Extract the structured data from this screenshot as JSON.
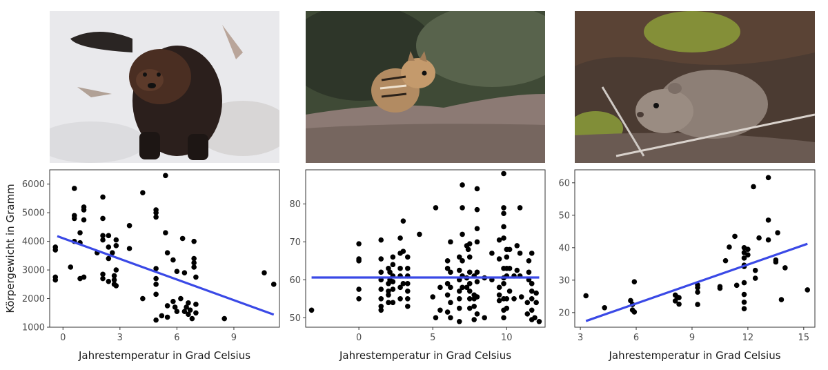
{
  "chart_data": [
    {
      "type": "scatter",
      "xlabel": "Jahrestemperatur in Grad Celsius",
      "ylabel": "Körpergewicht in Gramm",
      "xlim": [
        -0.7,
        11.4
      ],
      "ylim": [
        1000,
        6500
      ],
      "xticks": [
        0,
        3,
        6,
        9
      ],
      "yticks": [
        1000,
        2000,
        3000,
        4000,
        5000,
        6000
      ],
      "points": [
        [
          -0.4,
          3800
        ],
        [
          -0.4,
          3700
        ],
        [
          -0.4,
          2750
        ],
        [
          -0.4,
          2650
        ],
        [
          0.4,
          3100
        ],
        [
          0.6,
          5850
        ],
        [
          0.6,
          4900
        ],
        [
          0.6,
          4800
        ],
        [
          0.6,
          4000
        ],
        [
          0.9,
          4300
        ],
        [
          0.9,
          3950
        ],
        [
          0.9,
          2700
        ],
        [
          1.1,
          5200
        ],
        [
          1.1,
          5100
        ],
        [
          1.1,
          4750
        ],
        [
          1.1,
          2750
        ],
        [
          1.8,
          3600
        ],
        [
          2.1,
          5550
        ],
        [
          2.1,
          4800
        ],
        [
          2.1,
          4200
        ],
        [
          2.1,
          4050
        ],
        [
          2.1,
          2850
        ],
        [
          2.1,
          2700
        ],
        [
          2.4,
          4200
        ],
        [
          2.4,
          3800
        ],
        [
          2.4,
          3400
        ],
        [
          2.4,
          2600
        ],
        [
          2.6,
          3600
        ],
        [
          2.7,
          2800
        ],
        [
          2.7,
          2650
        ],
        [
          2.7,
          2500
        ],
        [
          2.8,
          4050
        ],
        [
          2.8,
          3850
        ],
        [
          2.8,
          3000
        ],
        [
          2.8,
          2450
        ],
        [
          3.5,
          4550
        ],
        [
          3.5,
          3750
        ],
        [
          4.2,
          5700
        ],
        [
          4.2,
          2000
        ],
        [
          4.9,
          5100
        ],
        [
          4.9,
          5000
        ],
        [
          4.9,
          4850
        ],
        [
          4.9,
          3050
        ],
        [
          4.9,
          2700
        ],
        [
          4.9,
          2500
        ],
        [
          4.9,
          2150
        ],
        [
          4.9,
          1250
        ],
        [
          5.2,
          1400
        ],
        [
          5.4,
          6300
        ],
        [
          5.4,
          4300
        ],
        [
          5.5,
          3600
        ],
        [
          5.5,
          1750
        ],
        [
          5.5,
          1350
        ],
        [
          5.8,
          3350
        ],
        [
          5.8,
          1900
        ],
        [
          5.9,
          1700
        ],
        [
          6,
          2950
        ],
        [
          6,
          1550
        ],
        [
          6.2,
          2000
        ],
        [
          6.3,
          4100
        ],
        [
          6.4,
          2900
        ],
        [
          6.4,
          1550
        ],
        [
          6.5,
          1700
        ],
        [
          6.6,
          1850
        ],
        [
          6.6,
          1450
        ],
        [
          6.7,
          1600
        ],
        [
          6.8,
          1300
        ],
        [
          6.9,
          4000
        ],
        [
          6.9,
          3400
        ],
        [
          6.9,
          3250
        ],
        [
          6.9,
          3100
        ],
        [
          7,
          2750
        ],
        [
          7,
          1800
        ],
        [
          7,
          1500
        ],
        [
          8.5,
          1300
        ],
        [
          10.6,
          2900
        ],
        [
          11.1,
          2500
        ]
      ],
      "fit": {
        "from": [
          -0.3,
          4180
        ],
        "to": [
          11.1,
          1440
        ]
      }
    },
    {
      "type": "scatter",
      "xlabel": "Jahrestemperatur in Grad Celsius",
      "ylabel": "",
      "xlim": [
        -3.6,
        12.6
      ],
      "ylim": [
        47.5,
        89
      ],
      "xticks": [
        0,
        5,
        10
      ],
      "yticks": [
        50,
        60,
        70,
        80
      ],
      "points": [
        [
          -3.2,
          52
        ],
        [
          0,
          69.5
        ],
        [
          0,
          65.5
        ],
        [
          0,
          65
        ],
        [
          0,
          57.5
        ],
        [
          0,
          55
        ],
        [
          1.5,
          70.5
        ],
        [
          1.5,
          65.5
        ],
        [
          1.5,
          62
        ],
        [
          1.5,
          60
        ],
        [
          1.5,
          57.5
        ],
        [
          1.5,
          55
        ],
        [
          1.5,
          53
        ],
        [
          1.5,
          52
        ],
        [
          2,
          63
        ],
        [
          2,
          59
        ],
        [
          2,
          57
        ],
        [
          2,
          56
        ],
        [
          2,
          54
        ],
        [
          2.1,
          62
        ],
        [
          2.1,
          60
        ],
        [
          2.3,
          66
        ],
        [
          2.3,
          64
        ],
        [
          2.3,
          61
        ],
        [
          2.3,
          59.5
        ],
        [
          2.3,
          57.5
        ],
        [
          2.3,
          54
        ],
        [
          2.8,
          71
        ],
        [
          2.8,
          67
        ],
        [
          2.8,
          63
        ],
        [
          2.8,
          61
        ],
        [
          2.8,
          58
        ],
        [
          2.8,
          55
        ],
        [
          3,
          75.5
        ],
        [
          3,
          67.5
        ],
        [
          3,
          59
        ],
        [
          3.3,
          66
        ],
        [
          3.3,
          63
        ],
        [
          3.3,
          61
        ],
        [
          3.3,
          59
        ],
        [
          3.3,
          57
        ],
        [
          3.3,
          55
        ],
        [
          3.3,
          53
        ],
        [
          4.1,
          72
        ],
        [
          5,
          55.5
        ],
        [
          5.2,
          79
        ],
        [
          5.2,
          50
        ],
        [
          5.5,
          58
        ],
        [
          5.5,
          52
        ],
        [
          6,
          65
        ],
        [
          6,
          63
        ],
        [
          6,
          59
        ],
        [
          6,
          56
        ],
        [
          6,
          51.5
        ],
        [
          6.2,
          70
        ],
        [
          6.2,
          62
        ],
        [
          6.2,
          58
        ],
        [
          6.2,
          54
        ],
        [
          6.2,
          50
        ],
        [
          6.8,
          66
        ],
        [
          6.8,
          62.5
        ],
        [
          6.8,
          60
        ],
        [
          6.8,
          57
        ],
        [
          6.8,
          55
        ],
        [
          6.8,
          52.5
        ],
        [
          6.8,
          49
        ],
        [
          7,
          85
        ],
        [
          7,
          79
        ],
        [
          7,
          72
        ],
        [
          7,
          65
        ],
        [
          7,
          61
        ],
        [
          7,
          58
        ],
        [
          7.3,
          69
        ],
        [
          7.3,
          60.5
        ],
        [
          7.3,
          58
        ],
        [
          7.4,
          68
        ],
        [
          7.5,
          69.5
        ],
        [
          7.5,
          66
        ],
        [
          7.5,
          62
        ],
        [
          7.5,
          59
        ],
        [
          7.5,
          57
        ],
        [
          7.5,
          55
        ],
        [
          7.5,
          52.5
        ],
        [
          7.8,
          61
        ],
        [
          7.8,
          56
        ],
        [
          7.8,
          55
        ],
        [
          7.8,
          53
        ],
        [
          7.8,
          49.5
        ],
        [
          8,
          84
        ],
        [
          8,
          78.5
        ],
        [
          8,
          73.5
        ],
        [
          8,
          70
        ],
        [
          8,
          62
        ],
        [
          8,
          59.5
        ],
        [
          8,
          55.5
        ],
        [
          8,
          51
        ],
        [
          8.5,
          60.5
        ],
        [
          8.5,
          50
        ],
        [
          9,
          67
        ],
        [
          9,
          60
        ],
        [
          9.5,
          70.5
        ],
        [
          9.5,
          65.5
        ],
        [
          9.5,
          58
        ],
        [
          9.5,
          56
        ],
        [
          9.5,
          54.5
        ],
        [
          9.8,
          88
        ],
        [
          9.8,
          79
        ],
        [
          9.8,
          77.5
        ],
        [
          9.8,
          74
        ],
        [
          9.8,
          71
        ],
        [
          9.8,
          63
        ],
        [
          9.8,
          60.5
        ],
        [
          9.8,
          59
        ],
        [
          9.8,
          55
        ],
        [
          9.8,
          52
        ],
        [
          9.8,
          50
        ],
        [
          10,
          68
        ],
        [
          10,
          66
        ],
        [
          10,
          63
        ],
        [
          10,
          61
        ],
        [
          10,
          55
        ],
        [
          10,
          52.5
        ],
        [
          10.2,
          68
        ],
        [
          10.2,
          63
        ],
        [
          10.2,
          57
        ],
        [
          10.5,
          55
        ],
        [
          10.5,
          61
        ],
        [
          10.7,
          69
        ],
        [
          10.7,
          62.5
        ],
        [
          10.9,
          79
        ],
        [
          10.9,
          67
        ],
        [
          10.9,
          61
        ],
        [
          11,
          55.5
        ],
        [
          11.4,
          54
        ],
        [
          11.4,
          51
        ],
        [
          11.5,
          65
        ],
        [
          11.5,
          62
        ],
        [
          11.5,
          60
        ],
        [
          11.7,
          67
        ],
        [
          11.7,
          59
        ],
        [
          11.7,
          57
        ],
        [
          11.7,
          55
        ],
        [
          11.7,
          52
        ],
        [
          11.7,
          49.5
        ],
        [
          11.9,
          50
        ],
        [
          12,
          56.5
        ],
        [
          12,
          54
        ],
        [
          12.2,
          49
        ]
      ],
      "fit": {
        "from": [
          -3.2,
          60.6
        ],
        "to": [
          12.2,
          60.6
        ]
      }
    },
    {
      "type": "scatter",
      "xlabel": "Jahrestemperatur in Grad Celsius",
      "ylabel": "",
      "xlim": [
        2.7,
        15.6
      ],
      "ylim": [
        15.5,
        64
      ],
      "xticks": [
        3,
        6,
        9,
        12,
        15
      ],
      "yticks": [
        20,
        30,
        40,
        50,
        60
      ],
      "points": [
        [
          3.3,
          25.2
        ],
        [
          4.3,
          21.5
        ],
        [
          5.7,
          23.7
        ],
        [
          5.8,
          22.5
        ],
        [
          5.8,
          20.8
        ],
        [
          5.9,
          29.5
        ],
        [
          5.9,
          20.2
        ],
        [
          8.1,
          25.4
        ],
        [
          8.1,
          23.6
        ],
        [
          8.2,
          24.8
        ],
        [
          8.3,
          24.6
        ],
        [
          8.3,
          22.6
        ],
        [
          9.3,
          28.5
        ],
        [
          9.3,
          27.7
        ],
        [
          9.3,
          26.3
        ],
        [
          9.3,
          22.5
        ],
        [
          10.5,
          28
        ],
        [
          10.5,
          27.5
        ],
        [
          10.8,
          36
        ],
        [
          11,
          40.2
        ],
        [
          11.3,
          43.5
        ],
        [
          11.4,
          28.4
        ],
        [
          11.8,
          40
        ],
        [
          11.8,
          38.5
        ],
        [
          11.8,
          36.8
        ],
        [
          11.8,
          34.6
        ],
        [
          11.8,
          34.2
        ],
        [
          11.8,
          29.2
        ],
        [
          11.8,
          25.6
        ],
        [
          11.8,
          23.2
        ],
        [
          11.8,
          21.2
        ],
        [
          12,
          39.5
        ],
        [
          12,
          37.8
        ],
        [
          12.3,
          58.8
        ],
        [
          12.4,
          33
        ],
        [
          12.4,
          30.6
        ],
        [
          12.6,
          43
        ],
        [
          13.1,
          61.6
        ],
        [
          13.1,
          48.5
        ],
        [
          13.1,
          42.4
        ],
        [
          13.5,
          36.2
        ],
        [
          13.5,
          35.6
        ],
        [
          13.6,
          44.6
        ],
        [
          13.8,
          24
        ],
        [
          14,
          33.8
        ],
        [
          15.2,
          27
        ]
      ],
      "fit": {
        "from": [
          3.3,
          17.4
        ],
        "to": [
          15.2,
          41.2
        ]
      }
    }
  ],
  "photos": [
    {
      "icon": "fisher-icon"
    },
    {
      "icon": "chipmunk-icon"
    },
    {
      "icon": "vole-icon"
    }
  ],
  "colors": {
    "fit_line": "#3a49e6",
    "points": "#000000",
    "panel_border": "#333333"
  }
}
